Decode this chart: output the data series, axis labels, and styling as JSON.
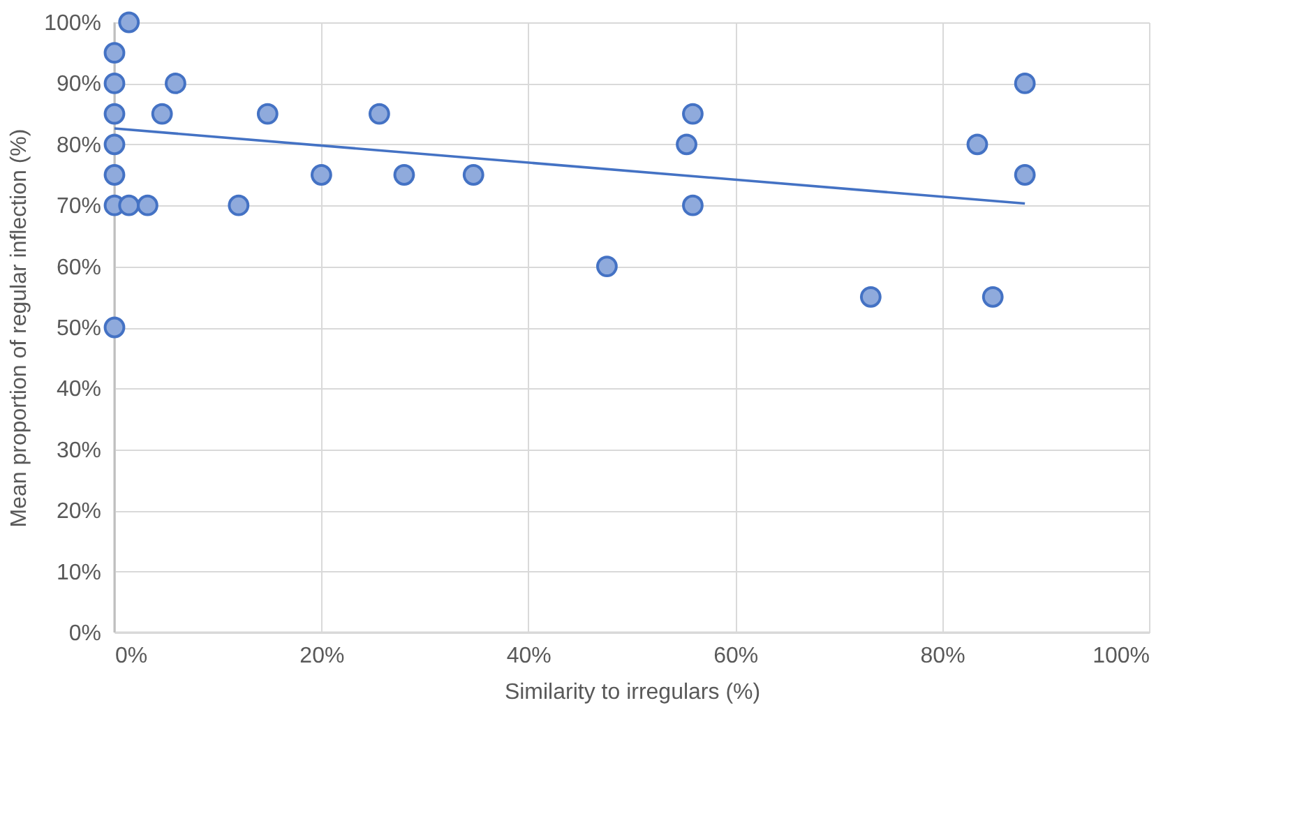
{
  "chart_data": {
    "type": "scatter",
    "xlabel": "Similarity to irregulars (%)",
    "ylabel": "Mean proportion of regular inflection (%)",
    "xlim": [
      0,
      100
    ],
    "ylim": [
      0,
      100
    ],
    "xticks": [
      {
        "value": 0,
        "label": "0%"
      },
      {
        "value": 20,
        "label": "20%"
      },
      {
        "value": 40,
        "label": "40%"
      },
      {
        "value": 60,
        "label": "60%"
      },
      {
        "value": 80,
        "label": "80%"
      },
      {
        "value": 100,
        "label": "100%"
      }
    ],
    "yticks": [
      {
        "value": 0,
        "label": "0%"
      },
      {
        "value": 10,
        "label": "10%"
      },
      {
        "value": 20,
        "label": "20%"
      },
      {
        "value": 30,
        "label": "30%"
      },
      {
        "value": 40,
        "label": "40%"
      },
      {
        "value": 50,
        "label": "50%"
      },
      {
        "value": 60,
        "label": "60%"
      },
      {
        "value": 70,
        "label": "70%"
      },
      {
        "value": 80,
        "label": "80%"
      },
      {
        "value": 90,
        "label": "90%"
      },
      {
        "value": 100,
        "label": "100%"
      }
    ],
    "grid": true,
    "series": [
      {
        "type": "scatter",
        "marker": "circle",
        "color": "#8faadc",
        "x": [
          0,
          0,
          0,
          0,
          0,
          0,
          0,
          1.4,
          1.4,
          3.2,
          4.6,
          5.9,
          12,
          14.8,
          20,
          25.6,
          28,
          34.7,
          47.6,
          55.3,
          55.9,
          55.9,
          73.1,
          83.4,
          84.9,
          88,
          88
        ],
        "values": [
          95,
          90,
          85,
          80,
          75,
          70,
          50,
          100,
          70,
          70,
          85,
          90,
          70,
          85,
          75,
          85,
          75,
          75,
          60,
          80,
          85,
          70,
          55,
          80,
          55,
          90,
          75
        ]
      },
      {
        "type": "line",
        "color": "#4472c4",
        "line_style": "solid",
        "x": [
          0,
          88
        ],
        "values": [
          82.6,
          70.3
        ]
      }
    ]
  }
}
